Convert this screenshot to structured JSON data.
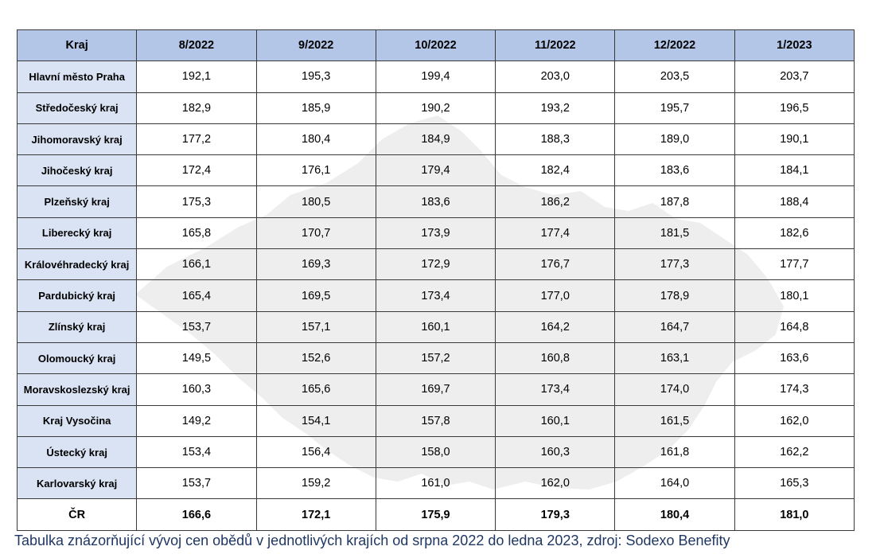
{
  "chart_data": {
    "type": "table",
    "columns": [
      "Kraj",
      "8/2022",
      "9/2022",
      "10/2022",
      "11/2022",
      "12/2022",
      "1/2023"
    ],
    "rows": [
      {
        "region": "Hlavní město Praha",
        "values": [
          "192,1",
          "195,3",
          "199,4",
          "203,0",
          "203,5",
          "203,7"
        ]
      },
      {
        "region": "Středočeský kraj",
        "values": [
          "182,9",
          "185,9",
          "190,2",
          "193,2",
          "195,7",
          "196,5"
        ]
      },
      {
        "region": "Jihomoravský kraj",
        "values": [
          "177,2",
          "180,4",
          "184,9",
          "188,3",
          "189,0",
          "190,1"
        ]
      },
      {
        "region": "Jihočeský kraj",
        "values": [
          "172,4",
          "176,1",
          "179,4",
          "182,4",
          "183,6",
          "184,1"
        ]
      },
      {
        "region": "Plzeňský kraj",
        "values": [
          "175,3",
          "180,5",
          "183,6",
          "186,2",
          "187,8",
          "188,4"
        ]
      },
      {
        "region": "Liberecký kraj",
        "values": [
          "165,8",
          "170,7",
          "173,9",
          "177,4",
          "181,5",
          "182,6"
        ]
      },
      {
        "region": "Královéhradecký kraj",
        "values": [
          "166,1",
          "169,3",
          "172,9",
          "176,7",
          "177,3",
          "177,7"
        ]
      },
      {
        "region": "Pardubický kraj",
        "values": [
          "165,4",
          "169,5",
          "173,4",
          "177,0",
          "178,9",
          "180,1"
        ]
      },
      {
        "region": "Zlínský kraj",
        "values": [
          "153,7",
          "157,1",
          "160,1",
          "164,2",
          "164,7",
          "164,8"
        ]
      },
      {
        "region": "Olomoucký kraj",
        "values": [
          "149,5",
          "152,6",
          "157,2",
          "160,8",
          "163,1",
          "163,6"
        ]
      },
      {
        "region": "Moravskoslezský kraj",
        "values": [
          "160,3",
          "165,6",
          "169,7",
          "173,4",
          "174,0",
          "174,3"
        ]
      },
      {
        "region": "Kraj Vysočina",
        "values": [
          "149,2",
          "154,1",
          "157,8",
          "160,1",
          "161,5",
          "162,0"
        ]
      },
      {
        "region": "Ústecký kraj",
        "values": [
          "153,4",
          "156,4",
          "158,0",
          "160,3",
          "161,8",
          "162,2"
        ]
      },
      {
        "region": "Karlovarský kraj",
        "values": [
          "153,7",
          "159,2",
          "161,0",
          "162,0",
          "164,0",
          "165,3"
        ]
      }
    ],
    "total": {
      "region": "ČR",
      "values": [
        "166,6",
        "172,1",
        "175,9",
        "179,3",
        "180,4",
        "181,0"
      ]
    }
  },
  "caption": "Tabulka znázorňující vývoj cen obědů v jednotlivých krajích od srpna 2022 do ledna 2023, zdroj: Sodexo Benefity",
  "colors": {
    "header_bg": "#b4c6e7",
    "region_bg": "#dae3f3",
    "map_watermark": "#ebebeb",
    "caption_text": "#1f3763",
    "border": "#3a3a3a"
  }
}
